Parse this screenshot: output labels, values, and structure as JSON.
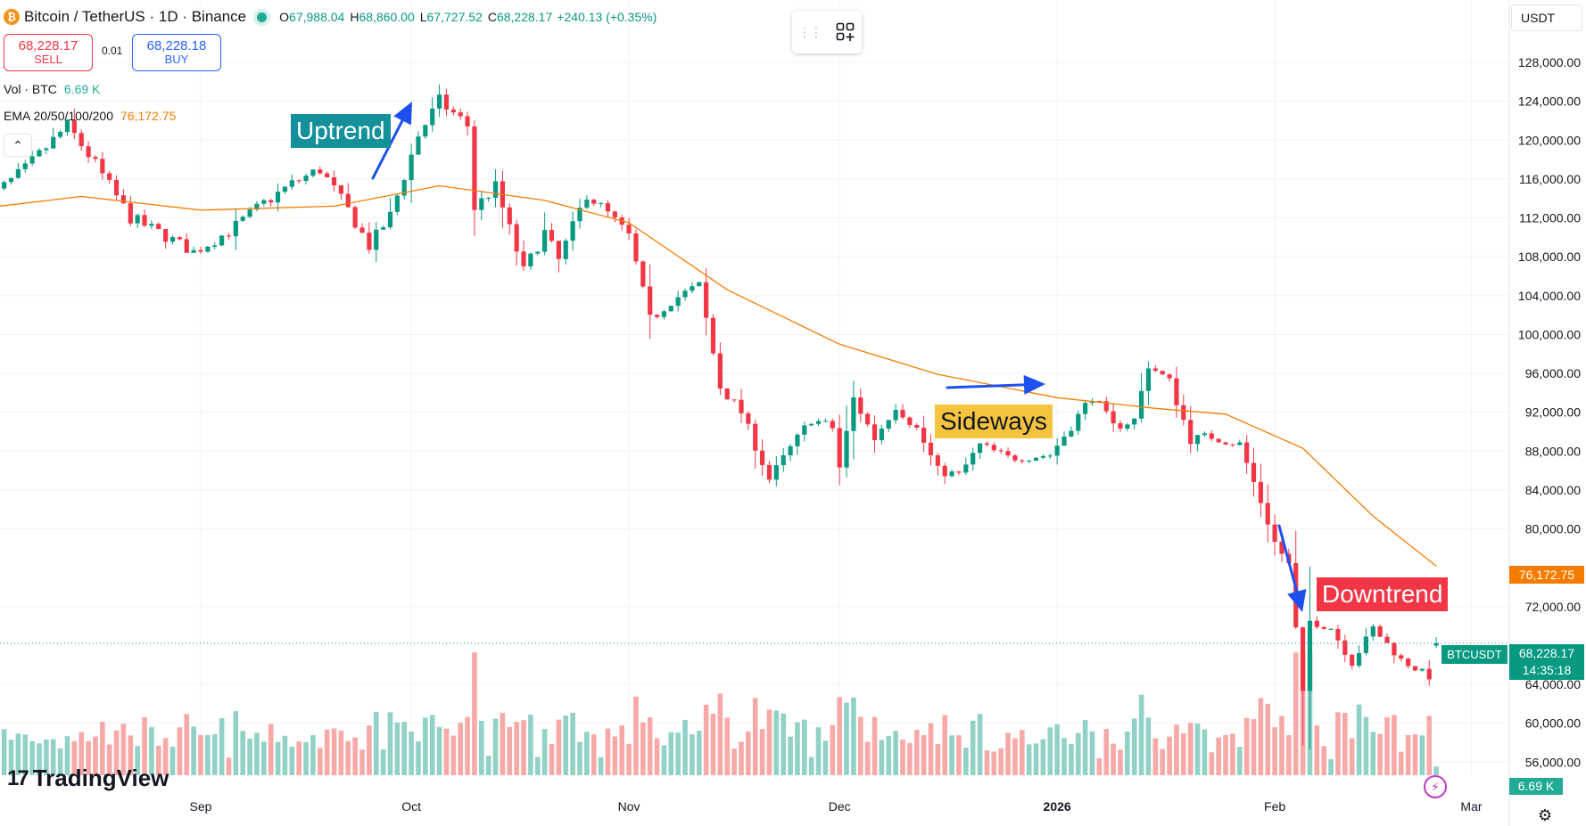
{
  "header": {
    "logo_glyph": "₿",
    "symbol_title": "Bitcoin / TetherUS · 1D · Binance",
    "ohlc": [
      {
        "label": "O",
        "value": "67,988.04"
      },
      {
        "label": "H",
        "value": "68,860.00"
      },
      {
        "label": "L",
        "value": "67,727.52"
      },
      {
        "label": "C",
        "value": "68,228.17"
      }
    ],
    "change": "+240.13 (+0.35%)"
  },
  "trade": {
    "sell_price": "68,228.17",
    "sell_label": "SELL",
    "spread": "0.01",
    "buy_price": "68,228.18",
    "buy_label": "BUY"
  },
  "indicators": {
    "volume_label": "Vol · BTC",
    "volume_value": "6.69 K",
    "ema_label": "EMA 20/50/100/200",
    "ema_value": "76,172.75"
  },
  "toolbar": {
    "currency": "USDT",
    "grip_icon": "grip-icon",
    "widgets_icon": "grid-plus-icon",
    "collapse_glyph": "⌃"
  },
  "annotations": {
    "uptrend": "Uptrend",
    "sideways": "Sideways",
    "downtrend": "Downtrend"
  },
  "tags": {
    "ema_tag": "76,172.75",
    "symbol_tag": "BTCUSDT",
    "last_price": "68,228.17",
    "countdown": "14:35:18",
    "volume_tag": "6.69 K"
  },
  "branding": {
    "logo_mark": "17",
    "logo_text": "TradingView"
  },
  "colors": {
    "up": "#089981",
    "down": "#f23645",
    "up_volume": "#91d1c6",
    "down_volume": "#f7a9a7",
    "ema": "#f57c00",
    "arrow": "#1e50f0"
  },
  "chart_data": {
    "type": "candlestick",
    "title": "Bitcoin / TetherUS · 1D · Binance",
    "x_ticks": [
      "Sep",
      "Oct",
      "Nov",
      "Dec",
      "2026",
      "Feb",
      "Mar"
    ],
    "y_ticks": [
      "128,000.00",
      "124,000.00",
      "120,000.00",
      "116,000.00",
      "112,000.00",
      "108,000.00",
      "104,000.00",
      "100,000.00",
      "96,000.00",
      "92,000.00",
      "88,000.00",
      "84,000.00",
      "80,000.00",
      "72,000.00",
      "64,000.00",
      "60,000.00",
      "56,000.00"
    ],
    "ylim": [
      55000,
      130000
    ],
    "grid": true,
    "last": {
      "open": 67988.04,
      "high": 68860.0,
      "low": 67727.52,
      "close": 68228.17,
      "volume_k": 6.69
    },
    "keypoints": [
      {
        "date": "2025-08-01",
        "close": 113500
      },
      {
        "date": "2025-08-07",
        "close": 117000
      },
      {
        "date": "2025-08-13",
        "close": 121500
      },
      {
        "date": "2025-08-17",
        "close": 117500
      },
      {
        "date": "2025-08-22",
        "close": 112000
      },
      {
        "date": "2025-08-26",
        "close": 110500
      },
      {
        "date": "2025-08-31",
        "close": 108500
      },
      {
        "date": "2025-09-05",
        "close": 110600
      },
      {
        "date": "2025-09-10",
        "close": 113500
      },
      {
        "date": "2025-09-14",
        "close": 115500
      },
      {
        "date": "2025-09-18",
        "close": 117000
      },
      {
        "date": "2025-09-22",
        "close": 112800
      },
      {
        "date": "2025-09-25",
        "close": 109100
      },
      {
        "date": "2025-09-28",
        "close": 112200
      },
      {
        "date": "2025-10-02",
        "close": 120500
      },
      {
        "date": "2025-10-05",
        "close": 124000
      },
      {
        "date": "2025-10-09",
        "close": 121500
      },
      {
        "date": "2025-10-10",
        "close": 113000
      },
      {
        "date": "2025-10-13",
        "close": 115200
      },
      {
        "date": "2025-10-17",
        "close": 106500
      },
      {
        "date": "2025-10-20",
        "close": 110500
      },
      {
        "date": "2025-10-22",
        "close": 107600
      },
      {
        "date": "2025-10-26",
        "close": 114500
      },
      {
        "date": "2025-10-29",
        "close": 112400
      },
      {
        "date": "2025-11-01",
        "close": 110100
      },
      {
        "date": "2025-11-04",
        "close": 101500
      },
      {
        "date": "2025-11-07",
        "close": 103500
      },
      {
        "date": "2025-11-11",
        "close": 105000
      },
      {
        "date": "2025-11-14",
        "close": 94600
      },
      {
        "date": "2025-11-17",
        "close": 92000
      },
      {
        "date": "2025-11-21",
        "close": 85100
      },
      {
        "date": "2025-11-24",
        "close": 88300
      },
      {
        "date": "2025-11-27",
        "close": 91300
      },
      {
        "date": "2025-11-30",
        "close": 90400
      },
      {
        "date": "2025-12-01",
        "close": 86300
      },
      {
        "date": "2025-12-03",
        "close": 93400
      },
      {
        "date": "2025-12-06",
        "close": 89300
      },
      {
        "date": "2025-12-09",
        "close": 92700
      },
      {
        "date": "2025-12-12",
        "close": 90300
      },
      {
        "date": "2025-12-15",
        "close": 86000
      },
      {
        "date": "2025-12-18",
        "close": 85500
      },
      {
        "date": "2025-12-21",
        "close": 88600
      },
      {
        "date": "2025-12-25",
        "close": 87300
      },
      {
        "date": "2025-12-31",
        "close": 87600
      },
      {
        "date": "2026-01-03",
        "close": 90600
      },
      {
        "date": "2026-01-06",
        "close": 93700
      },
      {
        "date": "2026-01-09",
        "close": 90500
      },
      {
        "date": "2026-01-12",
        "close": 91200
      },
      {
        "date": "2026-01-14",
        "close": 96900
      },
      {
        "date": "2026-01-17",
        "close": 95100
      },
      {
        "date": "2026-01-20",
        "close": 89200
      },
      {
        "date": "2026-01-23",
        "close": 89500
      },
      {
        "date": "2026-01-27",
        "close": 88700
      },
      {
        "date": "2026-01-30",
        "close": 82800
      },
      {
        "date": "2026-02-01",
        "close": 78600
      },
      {
        "date": "2026-02-03",
        "close": 76300
      },
      {
        "date": "2026-02-05",
        "close": 63000
      },
      {
        "date": "2026-02-06",
        "close": 70500
      },
      {
        "date": "2026-02-09",
        "close": 69800
      },
      {
        "date": "2026-02-12",
        "close": 66200
      },
      {
        "date": "2026-02-15",
        "close": 69800
      },
      {
        "date": "2026-02-19",
        "close": 66500
      },
      {
        "date": "2026-02-23",
        "close": 64800
      },
      {
        "date": "2026-02-24",
        "close": 68228.17
      }
    ],
    "ema": [
      {
        "date": "2025-08-01",
        "value": 113000
      },
      {
        "date": "2025-08-15",
        "value": 114200
      },
      {
        "date": "2025-09-01",
        "value": 112800
      },
      {
        "date": "2025-09-20",
        "value": 113200
      },
      {
        "date": "2025-10-05",
        "value": 115300
      },
      {
        "date": "2025-10-20",
        "value": 113800
      },
      {
        "date": "2025-11-01",
        "value": 111500
      },
      {
        "date": "2025-11-15",
        "value": 104600
      },
      {
        "date": "2025-12-01",
        "value": 99000
      },
      {
        "date": "2025-12-15",
        "value": 95900
      },
      {
        "date": "2026-01-01",
        "value": 93500
      },
      {
        "date": "2026-01-15",
        "value": 92400
      },
      {
        "date": "2026-01-25",
        "value": 91800
      },
      {
        "date": "2026-02-05",
        "value": 88300
      },
      {
        "date": "2026-02-15",
        "value": 81300
      },
      {
        "date": "2026-02-24",
        "value": 76172.75
      }
    ]
  }
}
